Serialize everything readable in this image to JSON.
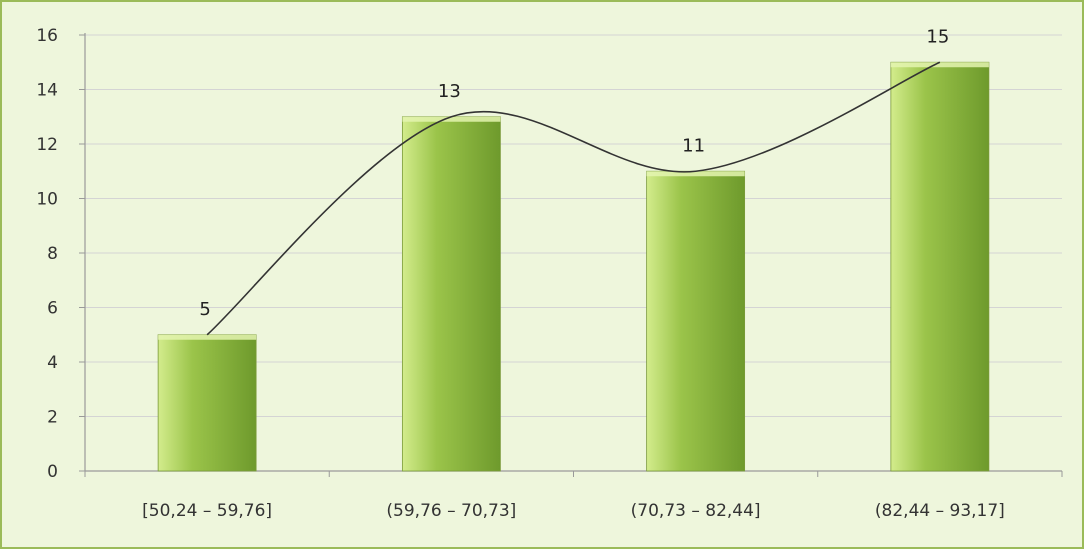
{
  "chart_data": {
    "type": "bar",
    "categories": [
      "[50,24 – 59,76]",
      "(59,76 – 70,73]",
      "(70,73 – 82,44]",
      "(82,44 – 93,17]"
    ],
    "values": [
      5,
      13,
      11,
      15
    ],
    "data_labels": [
      "5",
      "13",
      "11",
      "15"
    ],
    "y_ticks": [
      "0",
      "2",
      "4",
      "6",
      "8",
      "10",
      "12",
      "14",
      "16"
    ],
    "ylim": [
      0,
      16
    ],
    "title": "",
    "xlabel": "",
    "ylabel": "",
    "grid": "horizontal",
    "legend": "none",
    "overlay": "smoothed trend line through bar tops",
    "colors": {
      "background": "#eef6dc",
      "border": "#9bbb59",
      "bar_light": "#d3ec8c",
      "bar_mid": "#9bc44a",
      "bar_dark": "#6e9a2c",
      "grid": "#d4d4d4",
      "trend_line": "#333333"
    }
  }
}
